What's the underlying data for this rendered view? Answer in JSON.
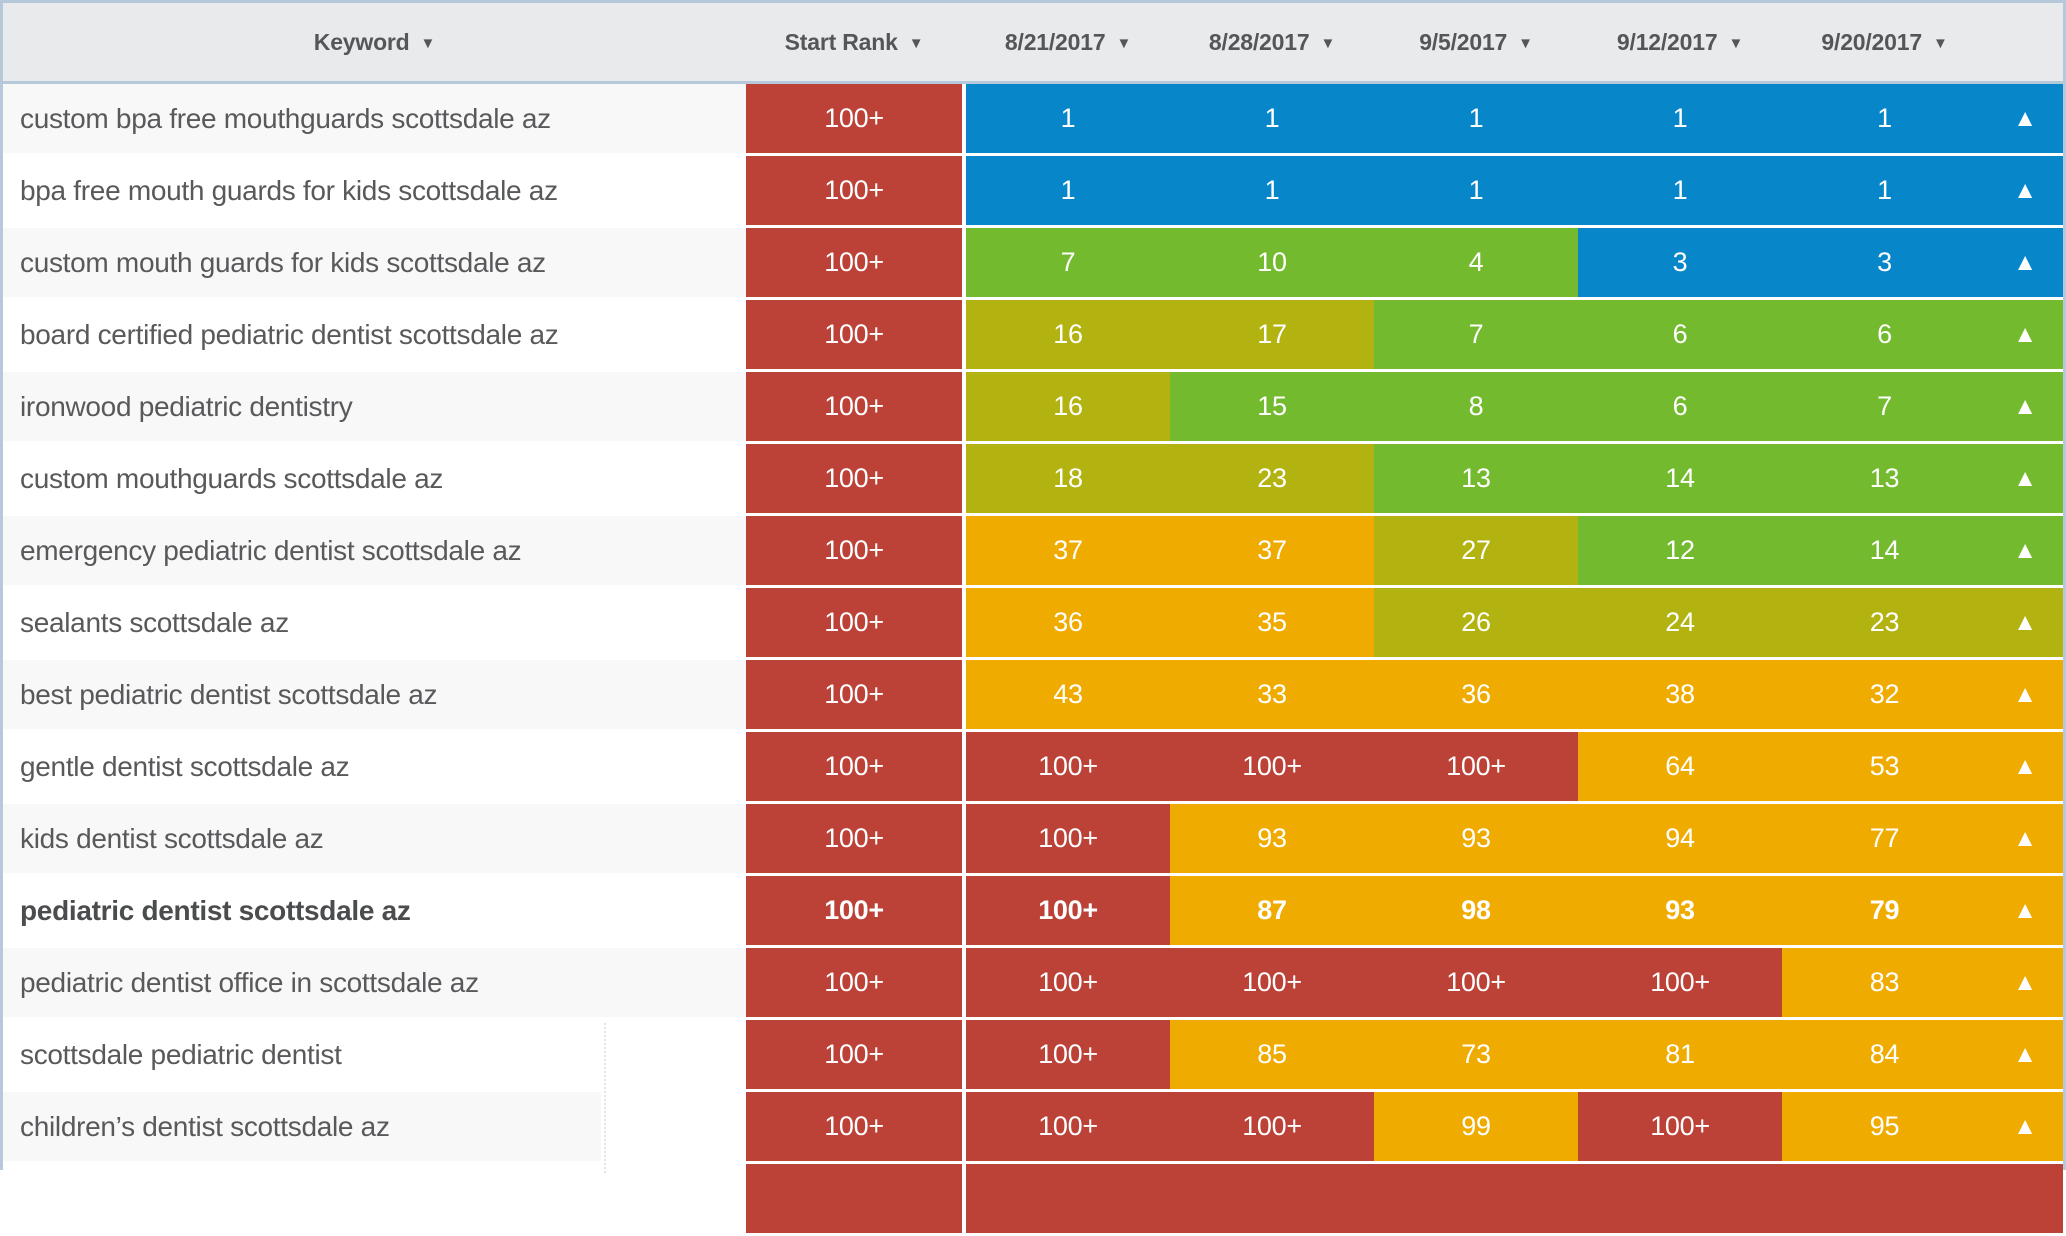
{
  "table": {
    "sort_icon": "▼",
    "trend_up_icon": "▲",
    "columns": {
      "keyword": "Keyword",
      "start_rank": "Start Rank",
      "dates": [
        "8/21/2017",
        "8/28/2017",
        "9/5/2017",
        "9/12/2017",
        "9/20/2017"
      ]
    },
    "colors": {
      "red": "#bc4238",
      "blue": "#0886ca",
      "green": "#73ba2e",
      "olive": "#b2b310",
      "orange": "#f0ab00",
      "header_bg": "#e9eaeb",
      "border": "#b5c9da",
      "row_alt_bg": "#f8f8f9"
    },
    "rows": [
      {
        "keyword": "custom bpa free mouthguards scottsdale az",
        "start_rank": "100+",
        "bold": false,
        "cells": [
          {
            "v": "1",
            "c": "blue"
          },
          {
            "v": "1",
            "c": "blue"
          },
          {
            "v": "1",
            "c": "blue"
          },
          {
            "v": "1",
            "c": "blue"
          },
          {
            "v": "1",
            "c": "blue"
          }
        ],
        "trend": "blue"
      },
      {
        "keyword": "bpa free mouth guards for kids scottsdale az",
        "start_rank": "100+",
        "bold": false,
        "cells": [
          {
            "v": "1",
            "c": "blue"
          },
          {
            "v": "1",
            "c": "blue"
          },
          {
            "v": "1",
            "c": "blue"
          },
          {
            "v": "1",
            "c": "blue"
          },
          {
            "v": "1",
            "c": "blue"
          }
        ],
        "trend": "blue"
      },
      {
        "keyword": "custom mouth guards for kids scottsdale az",
        "start_rank": "100+",
        "bold": false,
        "cells": [
          {
            "v": "7",
            "c": "green"
          },
          {
            "v": "10",
            "c": "green"
          },
          {
            "v": "4",
            "c": "green"
          },
          {
            "v": "3",
            "c": "blue"
          },
          {
            "v": "3",
            "c": "blue"
          }
        ],
        "trend": "blue"
      },
      {
        "keyword": "board certified pediatric dentist scottsdale az",
        "start_rank": "100+",
        "bold": false,
        "cells": [
          {
            "v": "16",
            "c": "olive"
          },
          {
            "v": "17",
            "c": "olive"
          },
          {
            "v": "7",
            "c": "green"
          },
          {
            "v": "6",
            "c": "green"
          },
          {
            "v": "6",
            "c": "green"
          }
        ],
        "trend": "green"
      },
      {
        "keyword": "ironwood pediatric dentistry",
        "start_rank": "100+",
        "bold": false,
        "cells": [
          {
            "v": "16",
            "c": "olive"
          },
          {
            "v": "15",
            "c": "green"
          },
          {
            "v": "8",
            "c": "green"
          },
          {
            "v": "6",
            "c": "green"
          },
          {
            "v": "7",
            "c": "green"
          }
        ],
        "trend": "green"
      },
      {
        "keyword": "custom mouthguards scottsdale az",
        "start_rank": "100+",
        "bold": false,
        "cells": [
          {
            "v": "18",
            "c": "olive"
          },
          {
            "v": "23",
            "c": "olive"
          },
          {
            "v": "13",
            "c": "green"
          },
          {
            "v": "14",
            "c": "green"
          },
          {
            "v": "13",
            "c": "green"
          }
        ],
        "trend": "green"
      },
      {
        "keyword": "emergency pediatric dentist scottsdale az",
        "start_rank": "100+",
        "bold": false,
        "cells": [
          {
            "v": "37",
            "c": "orange"
          },
          {
            "v": "37",
            "c": "orange"
          },
          {
            "v": "27",
            "c": "olive"
          },
          {
            "v": "12",
            "c": "green"
          },
          {
            "v": "14",
            "c": "green"
          }
        ],
        "trend": "green"
      },
      {
        "keyword": "sealants scottsdale az",
        "start_rank": "100+",
        "bold": false,
        "cells": [
          {
            "v": "36",
            "c": "orange"
          },
          {
            "v": "35",
            "c": "orange"
          },
          {
            "v": "26",
            "c": "olive"
          },
          {
            "v": "24",
            "c": "olive"
          },
          {
            "v": "23",
            "c": "olive"
          }
        ],
        "trend": "olive"
      },
      {
        "keyword": "best pediatric dentist scottsdale az",
        "start_rank": "100+",
        "bold": false,
        "cells": [
          {
            "v": "43",
            "c": "orange"
          },
          {
            "v": "33",
            "c": "orange"
          },
          {
            "v": "36",
            "c": "orange"
          },
          {
            "v": "38",
            "c": "orange"
          },
          {
            "v": "32",
            "c": "orange"
          }
        ],
        "trend": "orange"
      },
      {
        "keyword": "gentle dentist scottsdale az",
        "start_rank": "100+",
        "bold": false,
        "cells": [
          {
            "v": "100+",
            "c": "red"
          },
          {
            "v": "100+",
            "c": "red"
          },
          {
            "v": "100+",
            "c": "red"
          },
          {
            "v": "64",
            "c": "orange"
          },
          {
            "v": "53",
            "c": "orange"
          }
        ],
        "trend": "orange"
      },
      {
        "keyword": "kids dentist scottsdale az",
        "start_rank": "100+",
        "bold": false,
        "cells": [
          {
            "v": "100+",
            "c": "red"
          },
          {
            "v": "93",
            "c": "orange"
          },
          {
            "v": "93",
            "c": "orange"
          },
          {
            "v": "94",
            "c": "orange"
          },
          {
            "v": "77",
            "c": "orange"
          }
        ],
        "trend": "orange"
      },
      {
        "keyword": "pediatric dentist scottsdale az",
        "start_rank": "100+",
        "bold": true,
        "cells": [
          {
            "v": "100+",
            "c": "red"
          },
          {
            "v": "87",
            "c": "orange"
          },
          {
            "v": "98",
            "c": "orange"
          },
          {
            "v": "93",
            "c": "orange"
          },
          {
            "v": "79",
            "c": "orange"
          }
        ],
        "trend": "orange"
      },
      {
        "keyword": "pediatric dentist office in scottsdale az",
        "start_rank": "100+",
        "bold": false,
        "cells": [
          {
            "v": "100+",
            "c": "red"
          },
          {
            "v": "100+",
            "c": "red"
          },
          {
            "v": "100+",
            "c": "red"
          },
          {
            "v": "100+",
            "c": "red"
          },
          {
            "v": "83",
            "c": "orange"
          }
        ],
        "trend": "orange"
      },
      {
        "keyword": "scottsdale pediatric dentist",
        "start_rank": "100+",
        "bold": false,
        "cells": [
          {
            "v": "100+",
            "c": "red"
          },
          {
            "v": "85",
            "c": "orange"
          },
          {
            "v": "73",
            "c": "orange"
          },
          {
            "v": "81",
            "c": "orange"
          },
          {
            "v": "84",
            "c": "orange"
          }
        ],
        "trend": "orange"
      },
      {
        "keyword": "children’s dentist scottsdale az",
        "start_rank": "100+",
        "bold": false,
        "stripe_short": true,
        "cells": [
          {
            "v": "100+",
            "c": "red"
          },
          {
            "v": "100+",
            "c": "red"
          },
          {
            "v": "99",
            "c": "orange"
          },
          {
            "v": "100+",
            "c": "red"
          },
          {
            "v": "95",
            "c": "orange"
          }
        ],
        "trend": "orange"
      }
    ],
    "partial_row": {
      "start_rank_color": "red",
      "cells_color": "red",
      "trend_color": "red"
    }
  }
}
